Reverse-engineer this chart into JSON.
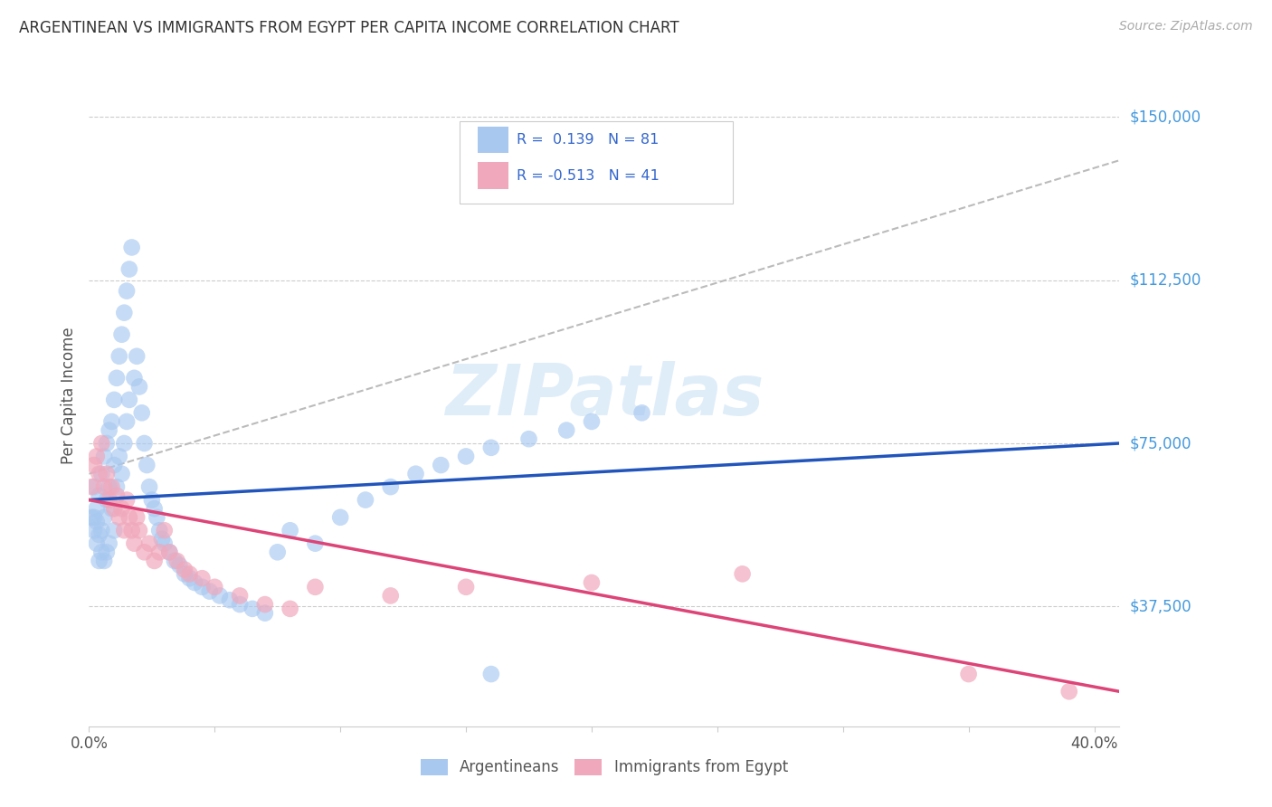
{
  "title": "ARGENTINEAN VS IMMIGRANTS FROM EGYPT PER CAPITA INCOME CORRELATION CHART",
  "source": "Source: ZipAtlas.com",
  "ylabel": "Per Capita Income",
  "xlim": [
    0.0,
    0.41
  ],
  "ylim": [
    10000,
    162000
  ],
  "background_color": "#ffffff",
  "grid_color": "#cccccc",
  "title_color": "#333333",
  "source_color": "#999999",
  "blue_color": "#a8c8f0",
  "pink_color": "#f0a8bc",
  "blue_line_color": "#2255bb",
  "pink_line_color": "#dd4477",
  "dash_line_color": "#bbbbbb",
  "watermark": "ZIPatlas",
  "ytick_vals": [
    37500,
    75000,
    112500,
    150000
  ],
  "ytick_labels": [
    "$37,500",
    "$75,000",
    "$112,500",
    "$150,000"
  ],
  "arg_x": [
    0.001,
    0.002,
    0.002,
    0.002,
    0.003,
    0.003,
    0.003,
    0.004,
    0.004,
    0.004,
    0.005,
    0.005,
    0.005,
    0.006,
    0.006,
    0.006,
    0.007,
    0.007,
    0.007,
    0.008,
    0.008,
    0.008,
    0.009,
    0.009,
    0.01,
    0.01,
    0.01,
    0.011,
    0.011,
    0.012,
    0.012,
    0.013,
    0.013,
    0.014,
    0.014,
    0.015,
    0.015,
    0.016,
    0.016,
    0.017,
    0.018,
    0.019,
    0.02,
    0.021,
    0.022,
    0.023,
    0.024,
    0.025,
    0.026,
    0.027,
    0.028,
    0.029,
    0.03,
    0.032,
    0.034,
    0.036,
    0.038,
    0.04,
    0.042,
    0.045,
    0.048,
    0.052,
    0.056,
    0.06,
    0.065,
    0.07,
    0.075,
    0.08,
    0.09,
    0.1,
    0.11,
    0.12,
    0.13,
    0.14,
    0.15,
    0.16,
    0.175,
    0.19,
    0.2,
    0.22,
    0.16
  ],
  "arg_y": [
    58000,
    58000,
    65000,
    55000,
    60000,
    52000,
    57000,
    63000,
    54000,
    48000,
    68000,
    55000,
    50000,
    72000,
    58000,
    48000,
    75000,
    62000,
    50000,
    78000,
    65000,
    52000,
    80000,
    60000,
    85000,
    70000,
    55000,
    90000,
    65000,
    95000,
    72000,
    100000,
    68000,
    105000,
    75000,
    110000,
    80000,
    115000,
    85000,
    120000,
    90000,
    95000,
    88000,
    82000,
    75000,
    70000,
    65000,
    62000,
    60000,
    58000,
    55000,
    53000,
    52000,
    50000,
    48000,
    47000,
    45000,
    44000,
    43000,
    42000,
    41000,
    40000,
    39000,
    38000,
    37000,
    36000,
    50000,
    55000,
    52000,
    58000,
    62000,
    65000,
    68000,
    70000,
    72000,
    74000,
    76000,
    78000,
    80000,
    82000,
    22000
  ],
  "egy_x": [
    0.001,
    0.002,
    0.003,
    0.004,
    0.005,
    0.006,
    0.007,
    0.008,
    0.009,
    0.01,
    0.011,
    0.012,
    0.013,
    0.014,
    0.015,
    0.016,
    0.017,
    0.018,
    0.019,
    0.02,
    0.022,
    0.024,
    0.026,
    0.028,
    0.03,
    0.032,
    0.035,
    0.038,
    0.04,
    0.045,
    0.05,
    0.06,
    0.07,
    0.08,
    0.09,
    0.12,
    0.15,
    0.2,
    0.26,
    0.35,
    0.39
  ],
  "egy_y": [
    65000,
    70000,
    72000,
    68000,
    75000,
    65000,
    68000,
    62000,
    65000,
    60000,
    63000,
    58000,
    60000,
    55000,
    62000,
    58000,
    55000,
    52000,
    58000,
    55000,
    50000,
    52000,
    48000,
    50000,
    55000,
    50000,
    48000,
    46000,
    45000,
    44000,
    42000,
    40000,
    38000,
    37000,
    42000,
    40000,
    42000,
    43000,
    45000,
    22000,
    18000
  ]
}
